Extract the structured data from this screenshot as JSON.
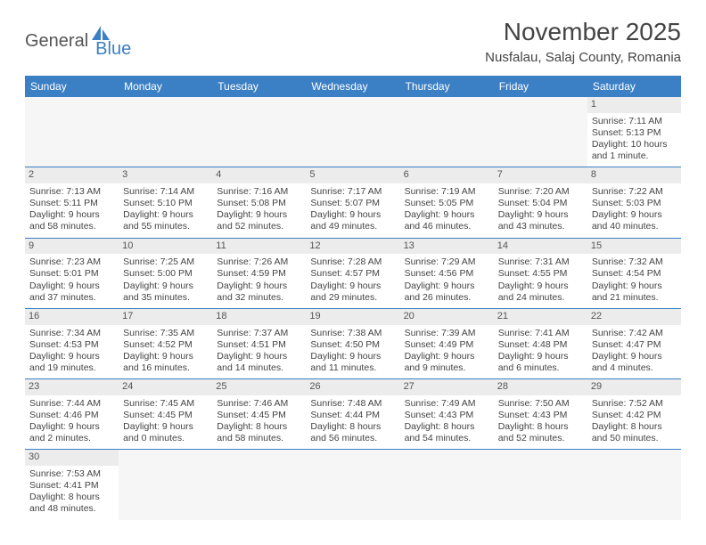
{
  "logo": {
    "part1": "General",
    "part2": "Blue"
  },
  "title": "November 2025",
  "location": "Nusfalau, Salaj County, Romania",
  "header_bg": "#3b7fc4",
  "day_names": [
    "Sunday",
    "Monday",
    "Tuesday",
    "Wednesday",
    "Thursday",
    "Friday",
    "Saturday"
  ],
  "weeks": [
    [
      {
        "empty": true
      },
      {
        "empty": true
      },
      {
        "empty": true
      },
      {
        "empty": true
      },
      {
        "empty": true
      },
      {
        "empty": true
      },
      {
        "n": "1",
        "sunrise": "Sunrise: 7:11 AM",
        "sunset": "Sunset: 5:13 PM",
        "daylight": "Daylight: 10 hours and 1 minute."
      }
    ],
    [
      {
        "n": "2",
        "sunrise": "Sunrise: 7:13 AM",
        "sunset": "Sunset: 5:11 PM",
        "daylight": "Daylight: 9 hours and 58 minutes."
      },
      {
        "n": "3",
        "sunrise": "Sunrise: 7:14 AM",
        "sunset": "Sunset: 5:10 PM",
        "daylight": "Daylight: 9 hours and 55 minutes."
      },
      {
        "n": "4",
        "sunrise": "Sunrise: 7:16 AM",
        "sunset": "Sunset: 5:08 PM",
        "daylight": "Daylight: 9 hours and 52 minutes."
      },
      {
        "n": "5",
        "sunrise": "Sunrise: 7:17 AM",
        "sunset": "Sunset: 5:07 PM",
        "daylight": "Daylight: 9 hours and 49 minutes."
      },
      {
        "n": "6",
        "sunrise": "Sunrise: 7:19 AM",
        "sunset": "Sunset: 5:05 PM",
        "daylight": "Daylight: 9 hours and 46 minutes."
      },
      {
        "n": "7",
        "sunrise": "Sunrise: 7:20 AM",
        "sunset": "Sunset: 5:04 PM",
        "daylight": "Daylight: 9 hours and 43 minutes."
      },
      {
        "n": "8",
        "sunrise": "Sunrise: 7:22 AM",
        "sunset": "Sunset: 5:03 PM",
        "daylight": "Daylight: 9 hours and 40 minutes."
      }
    ],
    [
      {
        "n": "9",
        "sunrise": "Sunrise: 7:23 AM",
        "sunset": "Sunset: 5:01 PM",
        "daylight": "Daylight: 9 hours and 37 minutes."
      },
      {
        "n": "10",
        "sunrise": "Sunrise: 7:25 AM",
        "sunset": "Sunset: 5:00 PM",
        "daylight": "Daylight: 9 hours and 35 minutes."
      },
      {
        "n": "11",
        "sunrise": "Sunrise: 7:26 AM",
        "sunset": "Sunset: 4:59 PM",
        "daylight": "Daylight: 9 hours and 32 minutes."
      },
      {
        "n": "12",
        "sunrise": "Sunrise: 7:28 AM",
        "sunset": "Sunset: 4:57 PM",
        "daylight": "Daylight: 9 hours and 29 minutes."
      },
      {
        "n": "13",
        "sunrise": "Sunrise: 7:29 AM",
        "sunset": "Sunset: 4:56 PM",
        "daylight": "Daylight: 9 hours and 26 minutes."
      },
      {
        "n": "14",
        "sunrise": "Sunrise: 7:31 AM",
        "sunset": "Sunset: 4:55 PM",
        "daylight": "Daylight: 9 hours and 24 minutes."
      },
      {
        "n": "15",
        "sunrise": "Sunrise: 7:32 AM",
        "sunset": "Sunset: 4:54 PM",
        "daylight": "Daylight: 9 hours and 21 minutes."
      }
    ],
    [
      {
        "n": "16",
        "sunrise": "Sunrise: 7:34 AM",
        "sunset": "Sunset: 4:53 PM",
        "daylight": "Daylight: 9 hours and 19 minutes."
      },
      {
        "n": "17",
        "sunrise": "Sunrise: 7:35 AM",
        "sunset": "Sunset: 4:52 PM",
        "daylight": "Daylight: 9 hours and 16 minutes."
      },
      {
        "n": "18",
        "sunrise": "Sunrise: 7:37 AM",
        "sunset": "Sunset: 4:51 PM",
        "daylight": "Daylight: 9 hours and 14 minutes."
      },
      {
        "n": "19",
        "sunrise": "Sunrise: 7:38 AM",
        "sunset": "Sunset: 4:50 PM",
        "daylight": "Daylight: 9 hours and 11 minutes."
      },
      {
        "n": "20",
        "sunrise": "Sunrise: 7:39 AM",
        "sunset": "Sunset: 4:49 PM",
        "daylight": "Daylight: 9 hours and 9 minutes."
      },
      {
        "n": "21",
        "sunrise": "Sunrise: 7:41 AM",
        "sunset": "Sunset: 4:48 PM",
        "daylight": "Daylight: 9 hours and 6 minutes."
      },
      {
        "n": "22",
        "sunrise": "Sunrise: 7:42 AM",
        "sunset": "Sunset: 4:47 PM",
        "daylight": "Daylight: 9 hours and 4 minutes."
      }
    ],
    [
      {
        "n": "23",
        "sunrise": "Sunrise: 7:44 AM",
        "sunset": "Sunset: 4:46 PM",
        "daylight": "Daylight: 9 hours and 2 minutes."
      },
      {
        "n": "24",
        "sunrise": "Sunrise: 7:45 AM",
        "sunset": "Sunset: 4:45 PM",
        "daylight": "Daylight: 9 hours and 0 minutes."
      },
      {
        "n": "25",
        "sunrise": "Sunrise: 7:46 AM",
        "sunset": "Sunset: 4:45 PM",
        "daylight": "Daylight: 8 hours and 58 minutes."
      },
      {
        "n": "26",
        "sunrise": "Sunrise: 7:48 AM",
        "sunset": "Sunset: 4:44 PM",
        "daylight": "Daylight: 8 hours and 56 minutes."
      },
      {
        "n": "27",
        "sunrise": "Sunrise: 7:49 AM",
        "sunset": "Sunset: 4:43 PM",
        "daylight": "Daylight: 8 hours and 54 minutes."
      },
      {
        "n": "28",
        "sunrise": "Sunrise: 7:50 AM",
        "sunset": "Sunset: 4:43 PM",
        "daylight": "Daylight: 8 hours and 52 minutes."
      },
      {
        "n": "29",
        "sunrise": "Sunrise: 7:52 AM",
        "sunset": "Sunset: 4:42 PM",
        "daylight": "Daylight: 8 hours and 50 minutes."
      }
    ],
    [
      {
        "n": "30",
        "sunrise": "Sunrise: 7:53 AM",
        "sunset": "Sunset: 4:41 PM",
        "daylight": "Daylight: 8 hours and 48 minutes."
      },
      {
        "empty": true
      },
      {
        "empty": true
      },
      {
        "empty": true
      },
      {
        "empty": true
      },
      {
        "empty": true
      },
      {
        "empty": true
      }
    ]
  ]
}
